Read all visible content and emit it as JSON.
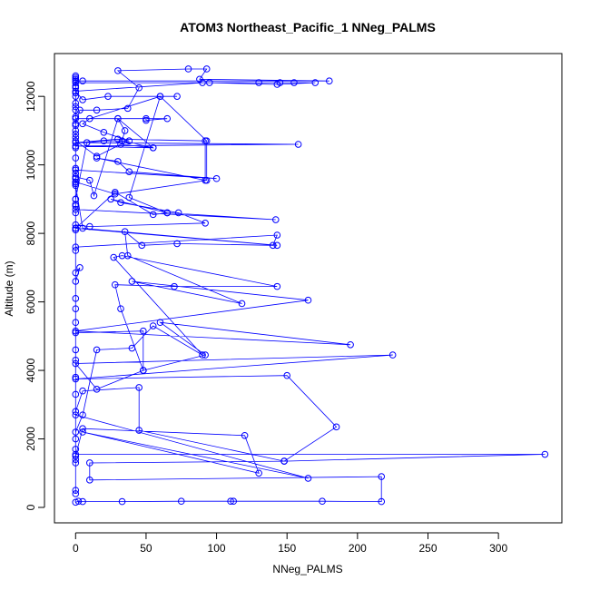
{
  "chart_data": {
    "type": "line",
    "title": "ATOM3 Northeast_Pacific_1 NNeg_PALMS",
    "xlabel": "NNeg_PALMS",
    "ylabel": "Altitude (m)",
    "xlim": [
      -15,
      345
    ],
    "ylim": [
      -450,
      13250
    ],
    "xticks": [
      0,
      50,
      100,
      150,
      200,
      250,
      300
    ],
    "yticks": [
      0,
      2000,
      4000,
      6000,
      8000,
      10000,
      12000
    ],
    "grid": false,
    "legend": "none",
    "series": [
      {
        "color": "#0000ff",
        "marker": "open-circle",
        "points": [
          [
            0,
            150
          ],
          [
            2,
            180
          ],
          [
            5,
            170
          ],
          [
            33,
            170
          ],
          [
            75,
            180
          ],
          [
            110,
            180
          ],
          [
            112,
            180
          ],
          [
            175,
            180
          ],
          [
            217,
            170
          ],
          [
            217,
            900
          ],
          [
            10,
            800
          ],
          [
            10,
            1300
          ],
          [
            148,
            1350
          ],
          [
            333,
            1550
          ],
          [
            0,
            1550
          ],
          [
            0,
            1400
          ],
          [
            0,
            1500
          ],
          [
            5,
            2300
          ],
          [
            120,
            2100
          ],
          [
            130,
            1000
          ],
          [
            5,
            2200
          ],
          [
            165,
            850
          ],
          [
            0,
            2700
          ],
          [
            0,
            2800
          ],
          [
            5,
            3400
          ],
          [
            45,
            3500
          ],
          [
            45,
            2250
          ],
          [
            148,
            1350
          ],
          [
            185,
            2350
          ],
          [
            150,
            3850
          ],
          [
            0,
            3750
          ],
          [
            225,
            4450
          ],
          [
            0,
            4200
          ],
          [
            15,
            3450
          ],
          [
            48,
            4000
          ],
          [
            92,
            4450
          ],
          [
            60,
            5400
          ],
          [
            195,
            4750
          ],
          [
            0,
            5150
          ],
          [
            165,
            6050
          ],
          [
            40,
            6600
          ],
          [
            118,
            5950
          ],
          [
            37,
            7350
          ],
          [
            35,
            8050
          ],
          [
            47,
            7650
          ],
          [
            72,
            7700
          ],
          [
            140,
            7650
          ],
          [
            143,
            7950
          ],
          [
            0,
            7600
          ],
          [
            0,
            6850
          ],
          [
            3,
            7000
          ],
          [
            0,
            6600
          ],
          [
            0,
            6100
          ],
          [
            0,
            5400
          ],
          [
            0,
            5100
          ],
          [
            48,
            5150
          ],
          [
            48,
            4000
          ],
          [
            32,
            5800
          ],
          [
            28,
            6500
          ],
          [
            70,
            6450
          ],
          [
            143,
            6450
          ],
          [
            33,
            7350
          ],
          [
            27,
            7300
          ],
          [
            90,
            4450
          ],
          [
            55,
            5300
          ],
          [
            40,
            4650
          ],
          [
            15,
            4600
          ],
          [
            5,
            2700
          ],
          [
            0,
            2200
          ],
          [
            0,
            2000
          ],
          [
            0,
            1700
          ],
          [
            0,
            1300
          ],
          [
            0,
            500
          ],
          [
            0,
            400
          ],
          [
            0,
            3300
          ],
          [
            0,
            3800
          ],
          [
            0,
            4300
          ],
          [
            0,
            4600
          ],
          [
            0,
            5800
          ],
          [
            0,
            7500
          ],
          [
            0,
            8100
          ],
          [
            0,
            8250
          ],
          [
            10,
            8200
          ],
          [
            92,
            8300
          ],
          [
            73,
            8600
          ],
          [
            32,
            8900
          ],
          [
            25,
            9000
          ],
          [
            65,
            8600
          ],
          [
            142,
            8400
          ],
          [
            0,
            8700
          ],
          [
            0,
            8850
          ],
          [
            0,
            8150
          ],
          [
            143,
            7650
          ],
          [
            5,
            8150
          ],
          [
            0,
            9400
          ],
          [
            0,
            9600
          ],
          [
            0,
            9750
          ],
          [
            0,
            9850
          ],
          [
            100,
            9600
          ],
          [
            38,
            9800
          ],
          [
            30,
            10100
          ],
          [
            15,
            10200
          ],
          [
            92,
            9550
          ],
          [
            92,
            10700
          ],
          [
            30,
            10750
          ],
          [
            0,
            10650
          ],
          [
            158,
            10600
          ],
          [
            0,
            10550
          ],
          [
            55,
            10500
          ],
          [
            33,
            10700
          ],
          [
            35,
            11000
          ],
          [
            30,
            11350
          ],
          [
            65,
            11350
          ],
          [
            50,
            11300
          ],
          [
            50,
            11350
          ],
          [
            0,
            11350
          ],
          [
            0,
            11200
          ],
          [
            3,
            11600
          ],
          [
            15,
            11600
          ],
          [
            37,
            11650
          ],
          [
            45,
            12250
          ],
          [
            30,
            12750
          ],
          [
            80,
            12800
          ],
          [
            93,
            12800
          ],
          [
            88,
            12500
          ],
          [
            180,
            12450
          ],
          [
            5,
            12450
          ],
          [
            0,
            12450
          ],
          [
            0,
            12550
          ],
          [
            0,
            12300
          ],
          [
            0,
            12100
          ],
          [
            0,
            11800
          ],
          [
            0,
            11600
          ],
          [
            0,
            11000
          ],
          [
            0,
            10800
          ],
          [
            0,
            10500
          ],
          [
            0,
            10200
          ],
          [
            0,
            9900
          ],
          [
            0,
            9500
          ],
          [
            0,
            9000
          ],
          [
            8,
            10650
          ],
          [
            20,
            10700
          ],
          [
            38,
            10700
          ],
          [
            20,
            10950
          ],
          [
            5,
            11200
          ],
          [
            10,
            11350
          ],
          [
            60,
            12000
          ],
          [
            72,
            12000
          ],
          [
            23,
            12000
          ],
          [
            5,
            11900
          ],
          [
            0,
            12150
          ],
          [
            90,
            12400
          ],
          [
            130,
            12400
          ],
          [
            145,
            12400
          ],
          [
            155,
            12400
          ],
          [
            170,
            12400
          ],
          [
            143,
            12350
          ],
          [
            95,
            12400
          ],
          [
            0,
            12400
          ],
          [
            0,
            12500
          ],
          [
            0,
            12600
          ],
          [
            0,
            12250
          ],
          [
            0,
            12000
          ],
          [
            0,
            11700
          ],
          [
            0,
            11400
          ],
          [
            0,
            11150
          ],
          [
            0,
            10900
          ],
          [
            0,
            10700
          ],
          [
            15,
            10250
          ],
          [
            32,
            10600
          ],
          [
            55,
            10500
          ],
          [
            30,
            11350
          ],
          [
            13,
            9100
          ],
          [
            10,
            9550
          ],
          [
            0,
            9650
          ],
          [
            0,
            9450
          ],
          [
            0,
            9000
          ],
          [
            0,
            8800
          ],
          [
            0,
            8600
          ],
          [
            0,
            8150
          ],
          [
            28,
            9200
          ],
          [
            55,
            8550
          ],
          [
            65,
            8600
          ],
          [
            38,
            9050
          ],
          [
            60,
            12000
          ],
          [
            93,
            10700
          ],
          [
            93,
            9550
          ],
          [
            28,
            9150
          ],
          [
            0,
            9500
          ],
          [
            0,
            9600
          ]
        ]
      }
    ]
  }
}
